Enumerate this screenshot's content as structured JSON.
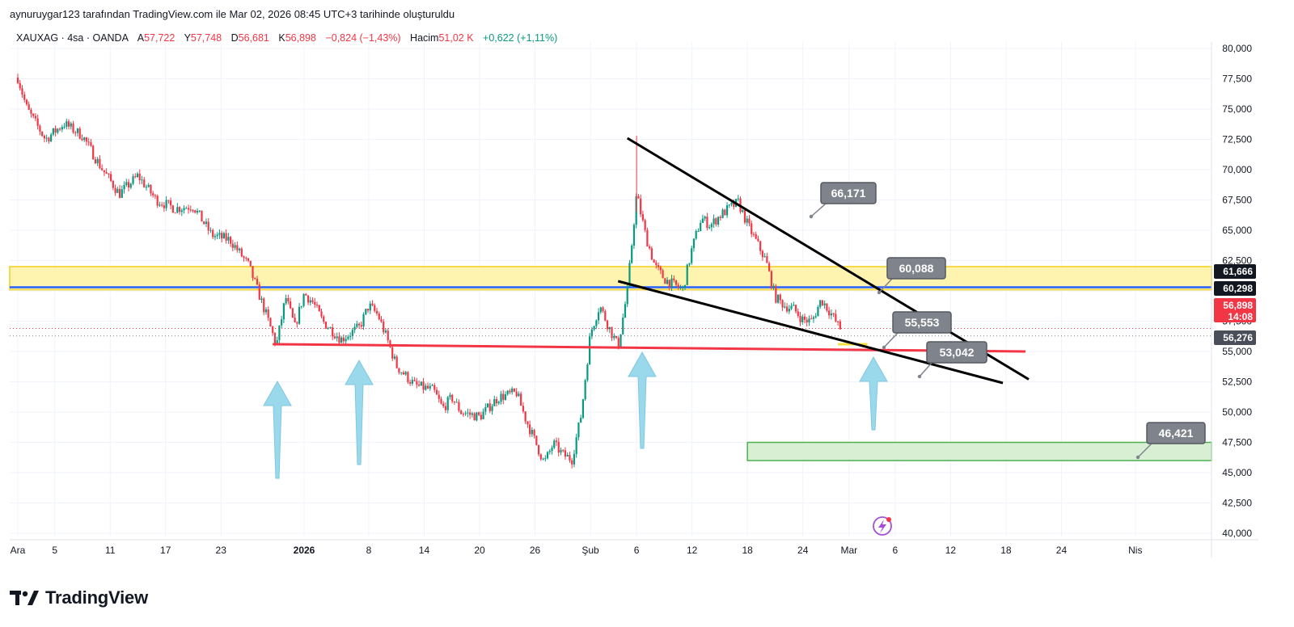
{
  "header": {
    "attribution": "aynuruygar123 tarafından TradingView.com ile Mar 02, 2026 08:45 UTC+3 tarihinde oluşturuldu"
  },
  "legend": {
    "symbol": "XAUXAG · 4sa · OANDA",
    "open_label": "A",
    "open": "57,722",
    "high_label": "Y",
    "high": "57,748",
    "low_label": "D",
    "low": "56,681",
    "close_label": "K",
    "close": "56,898",
    "change": "−0,824 (−1,43%)",
    "volume_label": "Hacim",
    "volume": "51,02 K",
    "volume_change": "+0,622 (+1,11%)"
  },
  "colors": {
    "up": "#089981",
    "down": "#f23645",
    "zone_yellow": "#fff3b0",
    "zone_green": "#d8efd4",
    "blue_line": "#2962ff",
    "red_line": "#f23645",
    "arrow": "#9ad8ec",
    "callout": "#7f838c"
  },
  "chart_data": {
    "type": "candlestick",
    "y_axis": {
      "min": 40000,
      "max": 80000,
      "ticks": [
        "80,000",
        "77,500",
        "75,000",
        "72,500",
        "70,000",
        "67,500",
        "65,000",
        "62,500",
        "60,000",
        "57,500",
        "55,000",
        "52,500",
        "50,000",
        "47,500",
        "45,000",
        "42,500",
        "40,000"
      ],
      "tick_values": [
        80,
        77.5,
        75,
        72.5,
        70,
        67.5,
        65,
        62.5,
        60,
        57.5,
        55,
        52.5,
        50,
        47.5,
        45,
        42.5,
        40
      ]
    },
    "x_axis": {
      "ticks": [
        {
          "label": "Ara",
          "day": 0
        },
        {
          "label": "5",
          "day": 4
        },
        {
          "label": "11",
          "day": 10
        },
        {
          "label": "17",
          "day": 16
        },
        {
          "label": "23",
          "day": 22
        },
        {
          "label": "2026",
          "day": 31,
          "bold": true
        },
        {
          "label": "8",
          "day": 38
        },
        {
          "label": "14",
          "day": 44
        },
        {
          "label": "20",
          "day": 50
        },
        {
          "label": "26",
          "day": 56
        },
        {
          "label": "Şub",
          "day": 62
        },
        {
          "label": "6",
          "day": 67
        },
        {
          "label": "12",
          "day": 73
        },
        {
          "label": "18",
          "day": 79
        },
        {
          "label": "24",
          "day": 85
        },
        {
          "label": "Mar",
          "day": 90
        },
        {
          "label": "6",
          "day": 95
        },
        {
          "label": "12",
          "day": 101
        },
        {
          "label": "18",
          "day": 107
        },
        {
          "label": "24",
          "day": 113
        },
        {
          "label": "Nis",
          "day": 121
        }
      ]
    },
    "price_path": [
      [
        0,
        77.6
      ],
      [
        1,
        75.0
      ],
      [
        3,
        72.5
      ],
      [
        5,
        73.8
      ],
      [
        7,
        72.8
      ],
      [
        9,
        70.2
      ],
      [
        11,
        68.0
      ],
      [
        13,
        69.5
      ],
      [
        15,
        67.5
      ],
      [
        17,
        66.8
      ],
      [
        19,
        67.0
      ],
      [
        21,
        64.6
      ],
      [
        23,
        64.2
      ],
      [
        25,
        62.1
      ],
      [
        27,
        57.8
      ],
      [
        28,
        55.5
      ],
      [
        29,
        59.5
      ],
      [
        30,
        57.0
      ],
      [
        31,
        59.8
      ],
      [
        32,
        59.0
      ],
      [
        33,
        57.5
      ],
      [
        35,
        56.0
      ],
      [
        36,
        56.5
      ],
      [
        37,
        57.0
      ],
      [
        38,
        58.8
      ],
      [
        39,
        58.0
      ],
      [
        40,
        56.0
      ],
      [
        41,
        53.8
      ],
      [
        43,
        52.2
      ],
      [
        45,
        51.8
      ],
      [
        46,
        50.3
      ],
      [
        47,
        51.2
      ],
      [
        48,
        50.0
      ],
      [
        50,
        49.6
      ],
      [
        52,
        51.2
      ],
      [
        54,
        51.6
      ],
      [
        55,
        49.4
      ],
      [
        56,
        47.6
      ],
      [
        57,
        45.8
      ],
      [
        58,
        47.4
      ],
      [
        59,
        46.5
      ],
      [
        60,
        46.1
      ],
      [
        61,
        49.8
      ],
      [
        62,
        56.5
      ],
      [
        63,
        58.8
      ],
      [
        64,
        57.0
      ],
      [
        65,
        55.4
      ],
      [
        66,
        60.0
      ],
      [
        67,
        68.0
      ],
      [
        68,
        64.5
      ],
      [
        69,
        62.0
      ],
      [
        70,
        61.0
      ],
      [
        71,
        60.5
      ],
      [
        72,
        60.1
      ],
      [
        73,
        63.5
      ],
      [
        74,
        66.0
      ],
      [
        75,
        65.4
      ],
      [
        76,
        66.2
      ],
      [
        77,
        66.8
      ],
      [
        78,
        67.3
      ],
      [
        79,
        65.5
      ],
      [
        80,
        64.0
      ],
      [
        81,
        62.5
      ],
      [
        82,
        59.5
      ],
      [
        83,
        58.8
      ],
      [
        84,
        58.5
      ],
      [
        85,
        57.6
      ],
      [
        86,
        57.5
      ],
      [
        87,
        59.3
      ],
      [
        88,
        58.2
      ],
      [
        89,
        56.9
      ]
    ],
    "annotations": {
      "yellow_zone": {
        "top": 62.0,
        "bottom": 60.1
      },
      "blue_line": 60.3,
      "red_support": 55.3,
      "green_zone": {
        "top": 47.5,
        "bottom": 46.0
      },
      "callouts": [
        "66,171",
        "60,088",
        "55,553",
        "53,042",
        "46,421"
      ],
      "price_badges": [
        {
          "text": "61,666",
          "bg": "#131722",
          "fg": "#ffffff"
        },
        {
          "text": "60,298",
          "bg": "#131722",
          "fg": "#ffffff"
        },
        {
          "text": "56,898",
          "sub": "14:08",
          "bg": "#f23645",
          "fg": "#ffffff"
        },
        {
          "text": "56,276",
          "bg": "#4a4e59",
          "fg": "#ffffff"
        }
      ]
    }
  },
  "brand": {
    "name": "TradingView"
  }
}
